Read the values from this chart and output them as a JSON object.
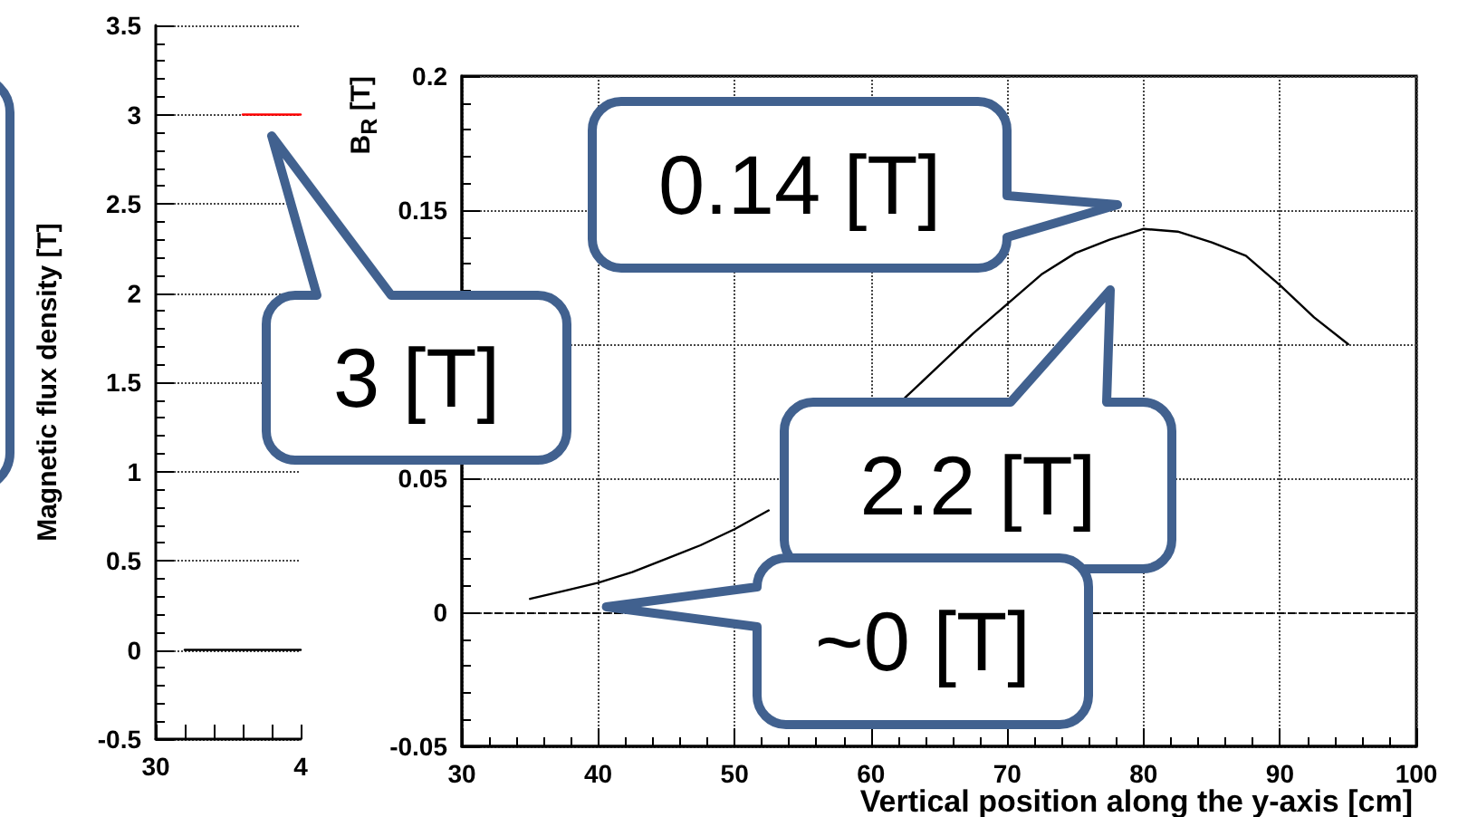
{
  "chart_data": [
    {
      "type": "line",
      "ylabel": "Magnetic flux density [T]",
      "categories": [
        "30",
        null,
        null,
        null,
        null,
        "4"
      ],
      "ylim": [
        -0.5,
        3.5
      ],
      "yticks": [
        -0.5,
        0,
        0.5,
        1,
        1.5,
        2,
        2.5,
        3,
        3.5
      ],
      "grid": "y",
      "marker": "none",
      "series": [
        {
          "color": "#ff0000",
          "values": [
            null,
            null,
            null,
            3,
            3,
            3
          ]
        },
        {
          "color": "#000000",
          "values": [
            null,
            0,
            0,
            0,
            0,
            0
          ]
        }
      ],
      "annotations": [
        "3 [T]"
      ]
    },
    {
      "type": "line",
      "xlabel": "Vertical position along the y-axis [cm]",
      "ylabel": "B$_{R}$ [T]",
      "xlim": [
        30,
        100
      ],
      "xticks": [
        30,
        40,
        50,
        60,
        70,
        80,
        90,
        100
      ],
      "ylim": [
        -0.05,
        0.2
      ],
      "yticks": [
        -0.05,
        0,
        0.05,
        {
          "value": 0.1,
          "label": null
        },
        0.15,
        0.2
      ],
      "grid": true,
      "marker": "none",
      "series": [
        {
          "color": "#000000",
          "x": [
            35,
            37.5,
            40,
            42.5,
            45,
            47.5,
            50,
            52.5,
            55,
            57.5,
            60,
            62.5,
            65,
            67.5,
            70,
            72.5,
            75,
            77.5,
            80,
            82.5,
            85,
            87.5,
            90,
            92.5,
            95
          ],
          "values": [
            0.005,
            0.008,
            0.011,
            0.015,
            0.02,
            0.025,
            0.031,
            0.038,
            null,
            null,
            null,
            0.08,
            0.092,
            0.104,
            0.115,
            0.126,
            0.134,
            0.139,
            0.143,
            0.142,
            0.138,
            0.133,
            0.122,
            0.11,
            0.1
          ]
        }
      ],
      "ref_lines": [
        {
          "axis": "y",
          "value": 0,
          "line_style": "dashed",
          "color": "#000000"
        }
      ],
      "annotations": [
        "0.14 [T]",
        "2.2 [T]",
        {
          "text": "~0 [T]",
          "x": 40.6,
          "y": 0.002
        }
      ]
    }
  ]
}
